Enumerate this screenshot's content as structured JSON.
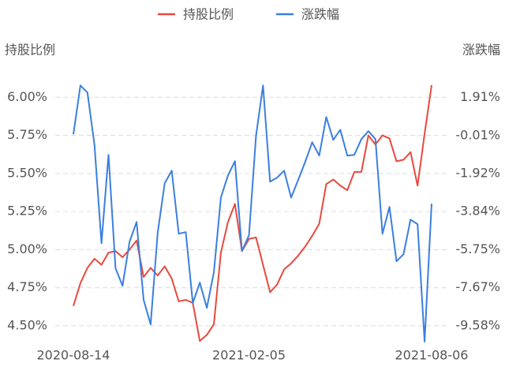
{
  "chart_data": {
    "type": "line",
    "categories": [
      "2020-08-14",
      null,
      null,
      null,
      null,
      null,
      null,
      null,
      null,
      null,
      null,
      null,
      null,
      null,
      null,
      null,
      null,
      null,
      null,
      null,
      null,
      null,
      null,
      null,
      null,
      "2021-02-05",
      null,
      null,
      null,
      null,
      null,
      null,
      null,
      null,
      null,
      null,
      null,
      null,
      null,
      null,
      null,
      null,
      null,
      null,
      null,
      null,
      null,
      null,
      null,
      null,
      null,
      "2021-08-06"
    ],
    "y_label": "持股比例",
    "y2_label": "涨跌幅",
    "series": [
      {
        "name": "持股比例",
        "color": "#e8493e",
        "axis": "y",
        "values": [
          4.63,
          4.78,
          4.88,
          4.94,
          4.9,
          4.98,
          4.99,
          4.95,
          5.0,
          5.06,
          4.82,
          4.88,
          4.83,
          4.89,
          4.81,
          4.66,
          4.67,
          4.65,
          4.4,
          4.44,
          4.51,
          4.98,
          5.18,
          5.3,
          4.99,
          5.07,
          5.08,
          4.9,
          4.72,
          4.77,
          4.87,
          4.91,
          4.96,
          5.02,
          5.09,
          5.17,
          5.43,
          5.46,
          5.42,
          5.39,
          5.51,
          5.51,
          5.75,
          5.69,
          5.75,
          5.73,
          5.58,
          5.59,
          5.64,
          5.42,
          5.76,
          6.08
        ]
      },
      {
        "name": "涨跌幅",
        "color": "#3b7fe0",
        "axis": "y2",
        "values": [
          0.05,
          2.51,
          2.15,
          -0.47,
          -5.43,
          -0.98,
          -6.69,
          -7.57,
          -5.35,
          -4.36,
          -8.28,
          -9.51,
          -4.91,
          -2.41,
          -1.78,
          -4.95,
          -4.87,
          -8.44,
          -7.41,
          -8.68,
          -6.89,
          -3.13,
          -2.02,
          -1.3,
          -5.82,
          -5.03,
          -0.03,
          2.51,
          -2.33,
          -2.13,
          -1.78,
          -3.13,
          -2.25,
          -1.34,
          -0.35,
          -1.02,
          0.92,
          -0.23,
          0.28,
          -1.02,
          -0.98,
          -0.19,
          0.21,
          -0.19,
          -4.95,
          -3.6,
          -6.34,
          -5.98,
          -4.24,
          -4.47,
          -10.38,
          -3.44
        ]
      }
    ],
    "ylim": [
      4.38,
      6.1
    ],
    "yticks": [
      {
        "value": 4.5,
        "label": "4.50%"
      },
      {
        "value": 4.75,
        "label": "4.75%"
      },
      {
        "value": 5.0,
        "label": "5.00%"
      },
      {
        "value": 5.25,
        "label": "5.25%"
      },
      {
        "value": 5.5,
        "label": "5.50%"
      },
      {
        "value": 5.75,
        "label": "5.75%"
      },
      {
        "value": 6.0,
        "label": "6.00%"
      }
    ],
    "y2lim": [
      -10.5,
      2.68
    ],
    "y2ticks": [
      {
        "value": -9.58,
        "label": "-9.58%"
      },
      {
        "value": -7.67,
        "label": "-7.67%"
      },
      {
        "value": -5.75,
        "label": "-5.75%"
      },
      {
        "value": -3.84,
        "label": "-3.84%"
      },
      {
        "value": -1.92,
        "label": "-1.92%"
      },
      {
        "value": -0.01,
        "label": "-0.01%"
      },
      {
        "value": 1.91,
        "label": "1.91%"
      }
    ],
    "grid": true,
    "legend": "top"
  }
}
